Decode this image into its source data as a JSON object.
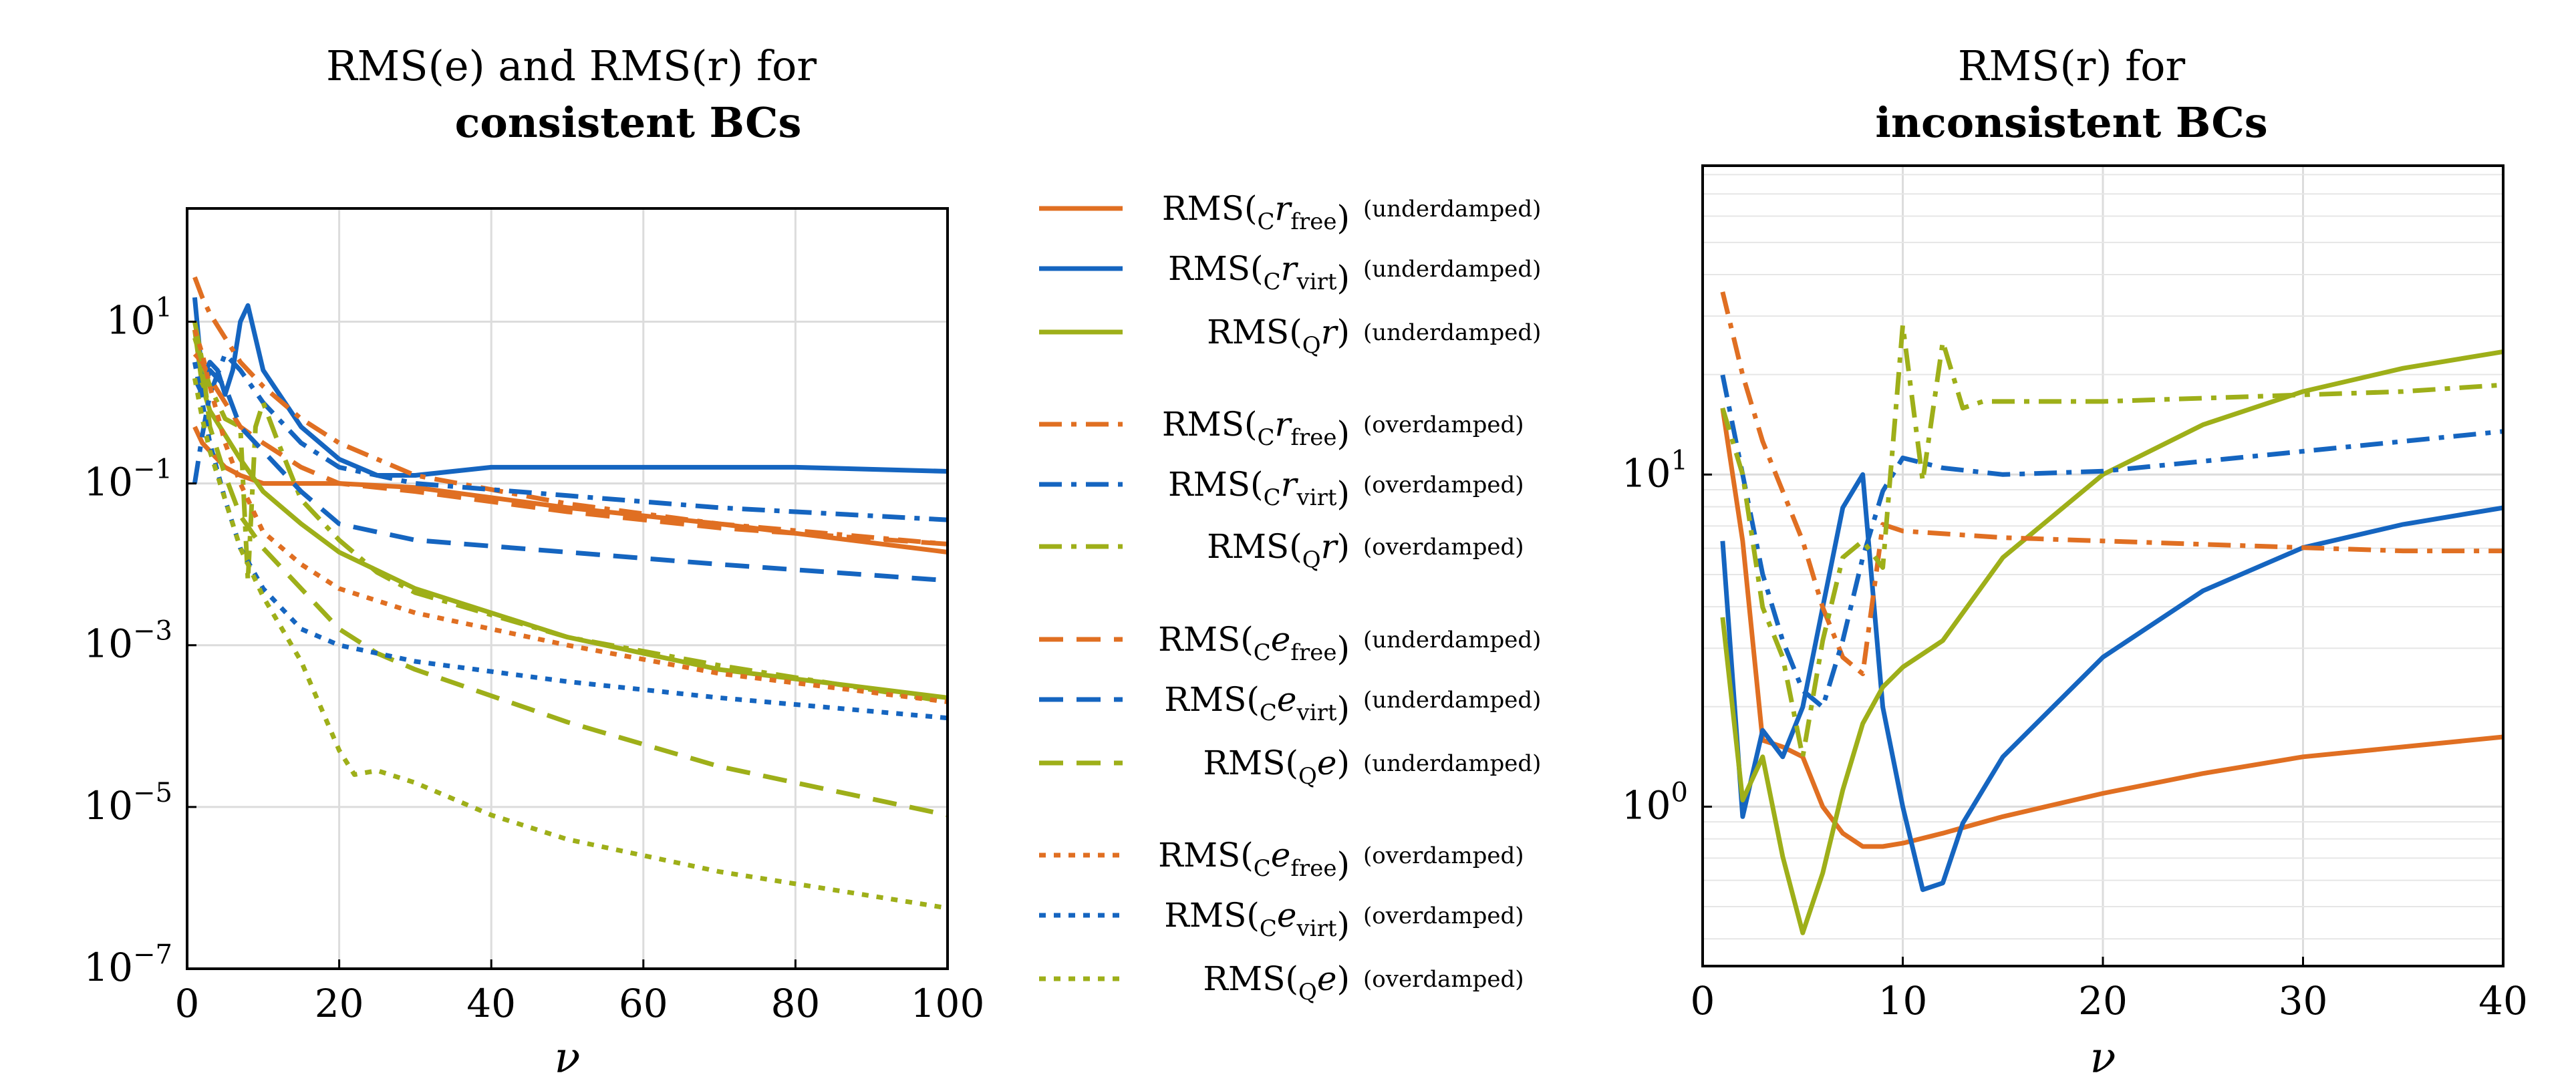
{
  "colors": {
    "orange": "#E06F22",
    "blue": "#1565C0",
    "green": "#9EAF19"
  },
  "chart_data": [
    {
      "type": "line",
      "title_line1": "RMS(e) and RMS(r) for",
      "title_line2": "consistent BCs",
      "xlabel": "ν",
      "ylabel": "",
      "xlim": [
        0,
        100
      ],
      "ylim_log10": [
        -7,
        2.4
      ],
      "yscale": "log",
      "xticks": [
        "0",
        "20",
        "40",
        "60",
        "80",
        "100"
      ],
      "xtick_values": [
        0,
        20,
        40,
        60,
        80,
        100
      ],
      "yticks": [
        {
          "base": "10",
          "exp": "1",
          "value": 1
        },
        {
          "base": "10",
          "exp": "−1",
          "value": -1
        },
        {
          "base": "10",
          "exp": "−3",
          "value": -3
        },
        {
          "base": "10",
          "exp": "−5",
          "value": -5
        },
        {
          "base": "10",
          "exp": "−7",
          "value": -7
        }
      ],
      "series": [
        {
          "name": "RMS(C r free) (underdamped)",
          "color": "orange",
          "dash": "solid",
          "x": [
            1,
            2,
            3,
            5,
            7,
            10,
            15,
            20,
            30,
            50,
            70,
            100
          ],
          "log10": [
            -0.3,
            -0.5,
            -0.6,
            -0.8,
            -0.9,
            -1.0,
            -1.0,
            -1.0,
            -1.05,
            -1.3,
            -1.5,
            -1.85
          ]
        },
        {
          "name": "RMS(C r virt) (underdamped)",
          "color": "blue",
          "dash": "solid",
          "x": [
            1,
            2,
            3,
            4,
            5,
            6,
            7,
            8,
            10,
            15,
            20,
            25,
            30,
            40,
            60,
            80,
            100
          ],
          "log10": [
            1.3,
            0.3,
            0.5,
            0.4,
            0.1,
            0.4,
            1.0,
            1.2,
            0.4,
            -0.3,
            -0.7,
            -0.9,
            -0.9,
            -0.8,
            -0.8,
            -0.8,
            -0.85
          ]
        },
        {
          "name": "RMS(Q r) (underdamped)",
          "color": "green",
          "dash": "solid",
          "x": [
            1,
            2,
            3,
            5,
            7,
            10,
            15,
            20,
            30,
            50,
            70,
            100
          ],
          "log10": [
            0.9,
            0.2,
            -0.1,
            -0.4,
            -0.7,
            -1.1,
            -1.5,
            -1.85,
            -2.3,
            -2.9,
            -3.3,
            -3.65
          ]
        },
        {
          "name": "RMS(C r free) (overdamped)",
          "color": "orange",
          "dash": "dashdot",
          "x": [
            1,
            2,
            3,
            5,
            7,
            10,
            15,
            20,
            30,
            50,
            70,
            100
          ],
          "log10": [
            1.55,
            1.3,
            1.1,
            0.8,
            0.5,
            0.2,
            -0.2,
            -0.5,
            -0.9,
            -1.25,
            -1.5,
            -1.75
          ]
        },
        {
          "name": "RMS(C r virt) (overdamped)",
          "color": "blue",
          "dash": "dashdot",
          "x": [
            1,
            2,
            3,
            5,
            7,
            10,
            15,
            20,
            30,
            50,
            70,
            100
          ],
          "log10": [
            -1.0,
            -0.4,
            0.1,
            0.6,
            0.4,
            0.0,
            -0.5,
            -0.8,
            -1.0,
            -1.15,
            -1.3,
            -1.45
          ]
        },
        {
          "name": "RMS(Q r) (overdamped)",
          "color": "green",
          "dash": "dashdot",
          "x": [
            1,
            2,
            3,
            5,
            7,
            8,
            9,
            10,
            12,
            15,
            20,
            25,
            30,
            50,
            70,
            100
          ],
          "log10": [
            1.0,
            0.5,
            0.2,
            -0.2,
            -0.3,
            -2.2,
            -0.3,
            0.0,
            -0.5,
            -1.2,
            -1.7,
            -2.1,
            -2.35,
            -2.9,
            -3.25,
            -3.7
          ]
        },
        {
          "name": "RMS(C e free) (underdamped)",
          "color": "orange",
          "dash": "dashed",
          "x": [
            1,
            2,
            3,
            5,
            7,
            10,
            15,
            20,
            30,
            50,
            70,
            100
          ],
          "log10": [
            0.6,
            0.5,
            0.3,
            0.0,
            -0.3,
            -0.5,
            -0.8,
            -1.0,
            -1.1,
            -1.35,
            -1.55,
            -1.75
          ]
        },
        {
          "name": "RMS(C e virt) (underdamped)",
          "color": "blue",
          "dash": "dashed",
          "x": [
            1,
            2,
            3,
            5,
            7,
            10,
            15,
            20,
            30,
            50,
            70,
            100
          ],
          "log10": [
            0.3,
            0.1,
            0.4,
            0.2,
            -0.3,
            -0.6,
            -1.1,
            -1.5,
            -1.7,
            -1.85,
            -2.0,
            -2.2
          ]
        },
        {
          "name": "RMS(Q e) (underdamped)",
          "color": "green",
          "dash": "dashed",
          "x": [
            1,
            2,
            3,
            5,
            7,
            10,
            15,
            20,
            25,
            30,
            50,
            70,
            100
          ],
          "log10": [
            0.8,
            0.5,
            -0.3,
            -0.9,
            -1.4,
            -1.8,
            -2.3,
            -2.8,
            -3.1,
            -3.3,
            -3.95,
            -4.5,
            -5.1
          ]
        },
        {
          "name": "RMS(C e free) (overdamped)",
          "color": "orange",
          "dash": "dotted",
          "x": [
            1,
            2,
            3,
            5,
            7,
            10,
            15,
            20,
            30,
            50,
            70,
            100
          ],
          "log10": [
            0.9,
            0.6,
            0.2,
            -0.5,
            -1.0,
            -1.6,
            -2.0,
            -2.3,
            -2.6,
            -3.0,
            -3.35,
            -3.7
          ]
        },
        {
          "name": "RMS(C e virt) (overdamped)",
          "color": "blue",
          "dash": "dotted",
          "x": [
            1,
            2,
            3,
            5,
            7,
            10,
            15,
            20,
            30,
            50,
            70,
            100
          ],
          "log10": [
            0.5,
            0.0,
            -0.5,
            -1.2,
            -1.8,
            -2.3,
            -2.8,
            -3.0,
            -3.2,
            -3.45,
            -3.65,
            -3.9
          ]
        },
        {
          "name": "RMS(Q e) (overdamped)",
          "color": "green",
          "dash": "dotted",
          "x": [
            1,
            2,
            3,
            5,
            7,
            10,
            15,
            20,
            22,
            25,
            30,
            40,
            50,
            70,
            100
          ],
          "log10": [
            0.3,
            -0.2,
            -0.6,
            -1.2,
            -1.8,
            -2.4,
            -3.2,
            -4.3,
            -4.6,
            -4.55,
            -4.7,
            -5.1,
            -5.4,
            -5.8,
            -6.25
          ]
        }
      ]
    },
    {
      "type": "line",
      "title_line1": "RMS(r) for",
      "title_line2": "inconsistent BCs",
      "xlabel": "ν",
      "xlim": [
        0,
        40
      ],
      "ylim_log10": [
        -0.48,
        1.93
      ],
      "yscale": "log",
      "xticks": [
        "0",
        "10",
        "20",
        "30",
        "40"
      ],
      "xtick_values": [
        0,
        10,
        20,
        30,
        40
      ],
      "yticks": [
        {
          "base": "10",
          "exp": "1",
          "value": 1
        },
        {
          "base": "10",
          "exp": "0",
          "value": 0
        }
      ],
      "series": [
        {
          "name": "RMS(C r free) (underdamped)",
          "color": "orange",
          "dash": "solid",
          "x": [
            1,
            2,
            3,
            4,
            5,
            6,
            7,
            8,
            9,
            10,
            12,
            15,
            20,
            25,
            30,
            35,
            40
          ],
          "log10": [
            1.2,
            0.8,
            0.2,
            0.18,
            0.15,
            0.0,
            -0.08,
            -0.12,
            -0.12,
            -0.11,
            -0.08,
            -0.03,
            0.04,
            0.1,
            0.15,
            0.18,
            0.21
          ]
        },
        {
          "name": "RMS(C r virt) (underdamped)",
          "color": "blue",
          "dash": "solid",
          "x": [
            1,
            2,
            3,
            4,
            5,
            6,
            7,
            8,
            9,
            10,
            11,
            12,
            13,
            15,
            20,
            25,
            30,
            35,
            40
          ],
          "log10": [
            0.8,
            -0.03,
            0.23,
            0.15,
            0.3,
            0.6,
            0.9,
            1.0,
            0.3,
            0.0,
            -0.25,
            -0.23,
            -0.05,
            0.15,
            0.45,
            0.65,
            0.78,
            0.85,
            0.9
          ]
        },
        {
          "name": "RMS(Q r) (underdamped)",
          "color": "green",
          "dash": "solid",
          "x": [
            1,
            2,
            3,
            4,
            5,
            6,
            7,
            8,
            9,
            10,
            12,
            15,
            20,
            25,
            30,
            35,
            40
          ],
          "log10": [
            0.57,
            0.02,
            0.15,
            -0.15,
            -0.38,
            -0.2,
            0.05,
            0.25,
            0.36,
            0.42,
            0.5,
            0.75,
            1.0,
            1.15,
            1.25,
            1.32,
            1.37
          ]
        },
        {
          "name": "RMS(C r free) (overdamped)",
          "color": "orange",
          "dash": "dashdot",
          "x": [
            1,
            2,
            3,
            4,
            5,
            6,
            7,
            8,
            9,
            10,
            15,
            20,
            25,
            30,
            35,
            40
          ],
          "log10": [
            1.55,
            1.3,
            1.1,
            0.95,
            0.8,
            0.6,
            0.45,
            0.4,
            0.85,
            0.83,
            0.81,
            0.8,
            0.79,
            0.78,
            0.77,
            0.77
          ]
        },
        {
          "name": "RMS(C r virt) (overdamped)",
          "color": "blue",
          "dash": "dashdot",
          "x": [
            1,
            2,
            3,
            4,
            5,
            6,
            7,
            8,
            9,
            10,
            12,
            15,
            20,
            25,
            30,
            35,
            40
          ],
          "log10": [
            1.3,
            1.0,
            0.7,
            0.5,
            0.35,
            0.3,
            0.5,
            0.75,
            0.95,
            1.05,
            1.02,
            1.0,
            1.01,
            1.04,
            1.07,
            1.1,
            1.13
          ]
        },
        {
          "name": "RMS(Q r) (overdamped)",
          "color": "green",
          "dash": "dashdot",
          "x": [
            1,
            2,
            3,
            4,
            5,
            6,
            7,
            8,
            9,
            10,
            11,
            12,
            13,
            14,
            15,
            20,
            25,
            30,
            35,
            40
          ],
          "log10": [
            1.2,
            1.0,
            0.6,
            0.45,
            0.15,
            0.5,
            0.75,
            0.8,
            0.72,
            1.45,
            0.98,
            1.4,
            1.2,
            1.22,
            1.22,
            1.22,
            1.23,
            1.24,
            1.25,
            1.27
          ]
        }
      ]
    }
  ],
  "legend": [
    {
      "prefix": "RMS(",
      "sub1": "C",
      "var": "r",
      "sub2": "free",
      "suffix": ")",
      "note": "(underdamped)",
      "color": "orange",
      "dash": "solid"
    },
    {
      "prefix": "RMS(",
      "sub1": "C",
      "var": "r",
      "sub2": "virt",
      "suffix": ")",
      "note": "(underdamped)",
      "color": "blue",
      "dash": "solid"
    },
    {
      "prefix": "RMS(",
      "sub1": "Q",
      "var": "r",
      "sub2": "",
      "suffix": ")",
      "note": "(underdamped)",
      "color": "green",
      "dash": "solid"
    },
    {
      "prefix": "RMS(",
      "sub1": "C",
      "var": "r",
      "sub2": "free",
      "suffix": ")",
      "note": "(overdamped)",
      "color": "orange",
      "dash": "dashdot"
    },
    {
      "prefix": "RMS(",
      "sub1": "C",
      "var": "r",
      "sub2": "virt",
      "suffix": ")",
      "note": "(overdamped)",
      "color": "blue",
      "dash": "dashdot"
    },
    {
      "prefix": "RMS(",
      "sub1": "Q",
      "var": "r",
      "sub2": "",
      "suffix": ")",
      "note": "(overdamped)",
      "color": "green",
      "dash": "dashdot"
    },
    {
      "prefix": "RMS(",
      "sub1": "C",
      "var": "e",
      "sub2": "free",
      "suffix": ")",
      "note": "(underdamped)",
      "color": "orange",
      "dash": "dashed"
    },
    {
      "prefix": "RMS(",
      "sub1": "C",
      "var": "e",
      "sub2": "virt",
      "suffix": ")",
      "note": "(underdamped)",
      "color": "blue",
      "dash": "dashed"
    },
    {
      "prefix": "RMS(",
      "sub1": "Q",
      "var": "e",
      "sub2": "",
      "suffix": ")",
      "note": "(underdamped)",
      "color": "green",
      "dash": "dashed"
    },
    {
      "prefix": "RMS(",
      "sub1": "C",
      "var": "e",
      "sub2": "free",
      "suffix": ")",
      "note": "(overdamped)",
      "color": "orange",
      "dash": "dotted"
    },
    {
      "prefix": "RMS(",
      "sub1": "C",
      "var": "e",
      "sub2": "virt",
      "suffix": ")",
      "note": "(overdamped)",
      "color": "blue",
      "dash": "dotted"
    },
    {
      "prefix": "RMS(",
      "sub1": "Q",
      "var": "e",
      "sub2": "",
      "suffix": ")",
      "note": "(overdamped)",
      "color": "green",
      "dash": "dotted"
    }
  ]
}
